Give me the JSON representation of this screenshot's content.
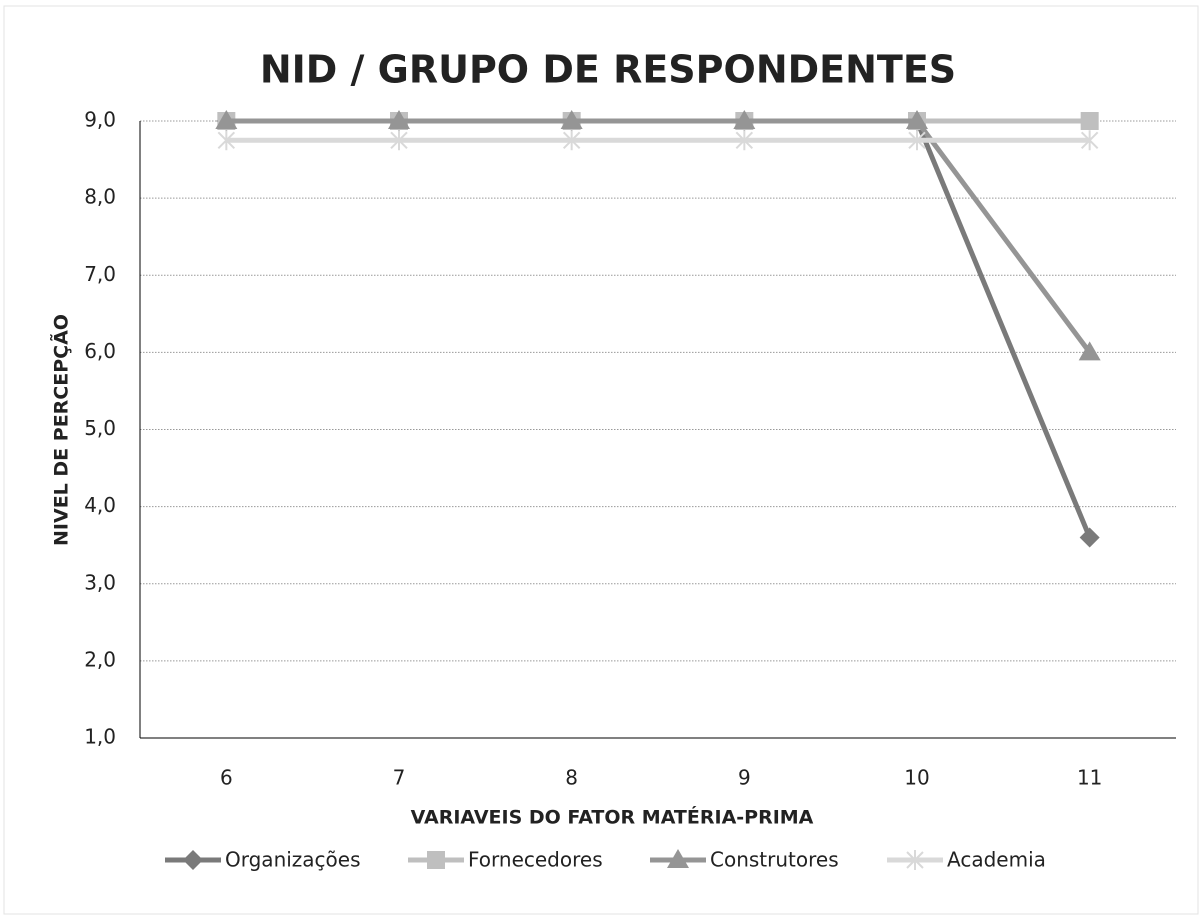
{
  "chart_data": {
    "type": "line",
    "title": "NID / GRUPO DE RESPONDENTES",
    "x_label": "VARIAVEIS DO FATOR MATÉRIA-PRIMA",
    "y_label": "NIVEL DE PERCEPÇÃO",
    "categories": [
      "6",
      "7",
      "8",
      "9",
      "10",
      "11"
    ],
    "series": [
      {
        "name": "Organizações",
        "color": "#7a7a7a",
        "marker": "diamond",
        "values": [
          9,
          9,
          9,
          9,
          9,
          3.6
        ]
      },
      {
        "name": "Fornecedores",
        "color": "#bfbfbf",
        "marker": "square",
        "values": [
          9,
          9,
          9,
          9,
          9,
          9
        ]
      },
      {
        "name": "Construtores",
        "color": "#959595",
        "marker": "triangle",
        "values": [
          9,
          9,
          9,
          9,
          9,
          6
        ]
      },
      {
        "name": "Academia",
        "color": "#d9d9d9",
        "marker": "star",
        "values": [
          8.75,
          8.75,
          8.75,
          8.75,
          8.75,
          8.75
        ]
      }
    ],
    "ylim": [
      1,
      9
    ],
    "yticks": [
      {
        "value": 1,
        "label": "1,0"
      },
      {
        "value": 2,
        "label": "2,0"
      },
      {
        "value": 3,
        "label": "3,0"
      },
      {
        "value": 4,
        "label": "4,0"
      },
      {
        "value": 5,
        "label": "5,0"
      },
      {
        "value": 6,
        "label": "6,0"
      },
      {
        "value": 7,
        "label": "7,0"
      },
      {
        "value": 8,
        "label": "8,0"
      },
      {
        "value": 9,
        "label": "9,0"
      }
    ],
    "grid": true,
    "legend": "bottom"
  }
}
